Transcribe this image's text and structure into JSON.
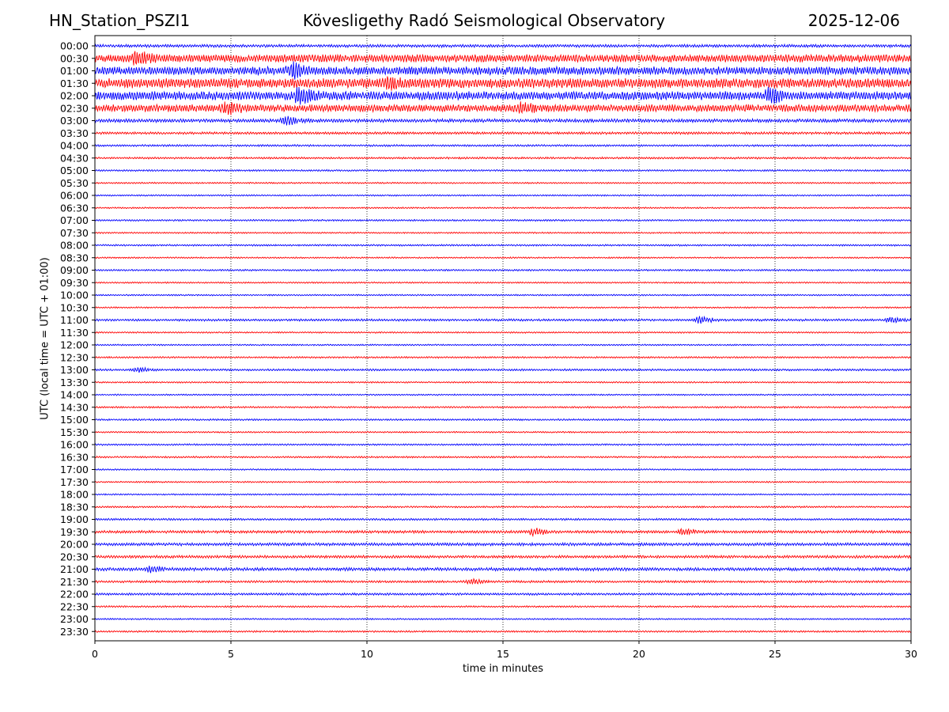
{
  "header": {
    "station": "HN_Station_PSZI1",
    "observatory": "Kövesligethy Radó Seismological Observatory",
    "date": "2025-12-06"
  },
  "chart_data": {
    "type": "line",
    "title": "Kövesligethy Radó Seismological Observatory",
    "xlabel": "time in minutes",
    "ylabel": "UTC (local time = UTC + 01:00)",
    "xlim": [
      0,
      30
    ],
    "x_ticks": [
      0,
      5,
      10,
      15,
      20,
      25,
      30
    ],
    "grid": "vertical dotted lines at each x tick",
    "rows": [
      "00:00",
      "00:30",
      "01:00",
      "01:30",
      "02:00",
      "02:30",
      "03:00",
      "03:30",
      "04:00",
      "04:30",
      "05:00",
      "05:30",
      "06:00",
      "06:30",
      "07:00",
      "07:30",
      "08:00",
      "08:30",
      "09:00",
      "09:30",
      "10:00",
      "10:30",
      "11:00",
      "11:30",
      "12:00",
      "12:30",
      "13:00",
      "13:30",
      "14:00",
      "14:30",
      "15:00",
      "15:30",
      "16:00",
      "16:30",
      "17:00",
      "17:30",
      "18:00",
      "18:30",
      "19:00",
      "19:30",
      "20:00",
      "20:30",
      "21:00",
      "21:30",
      "22:00",
      "22:30",
      "23:00",
      "23:30"
    ],
    "colors": [
      "#0000ff",
      "#ff0000"
    ],
    "relative_activity": [
      0.6,
      1.6,
      1.7,
      2.0,
      1.8,
      1.5,
      0.7,
      0.5,
      0.4,
      0.4,
      0.35,
      0.3,
      0.3,
      0.3,
      0.35,
      0.3,
      0.35,
      0.3,
      0.35,
      0.3,
      0.3,
      0.3,
      0.45,
      0.3,
      0.3,
      0.35,
      0.4,
      0.3,
      0.3,
      0.35,
      0.35,
      0.3,
      0.35,
      0.35,
      0.3,
      0.3,
      0.3,
      0.35,
      0.4,
      0.55,
      0.6,
      0.55,
      0.65,
      0.45,
      0.45,
      0.35,
      0.3,
      0.35
    ],
    "events": [
      {
        "row": 1,
        "minute": 1.5,
        "amp": 2.0
      },
      {
        "row": 2,
        "minute": 7.2,
        "amp": 2.2
      },
      {
        "row": 3,
        "minute": 10.8,
        "amp": 2.0
      },
      {
        "row": 4,
        "minute": 7.5,
        "amp": 2.5
      },
      {
        "row": 4,
        "minute": 24.8,
        "amp": 2.2
      },
      {
        "row": 5,
        "minute": 4.8,
        "amp": 1.8
      },
      {
        "row": 5,
        "minute": 15.6,
        "amp": 1.6
      },
      {
        "row": 6,
        "minute": 7.0,
        "amp": 1.4
      },
      {
        "row": 22,
        "minute": 22.2,
        "amp": 1.2
      },
      {
        "row": 22,
        "minute": 29.2,
        "amp": 1.0
      },
      {
        "row": 26,
        "minute": 1.5,
        "amp": 0.8
      },
      {
        "row": 39,
        "minute": 16.1,
        "amp": 1.2
      },
      {
        "row": 39,
        "minute": 21.6,
        "amp": 1.0
      },
      {
        "row": 42,
        "minute": 2.0,
        "amp": 0.9
      },
      {
        "row": 43,
        "minute": 13.8,
        "amp": 0.8
      }
    ]
  }
}
